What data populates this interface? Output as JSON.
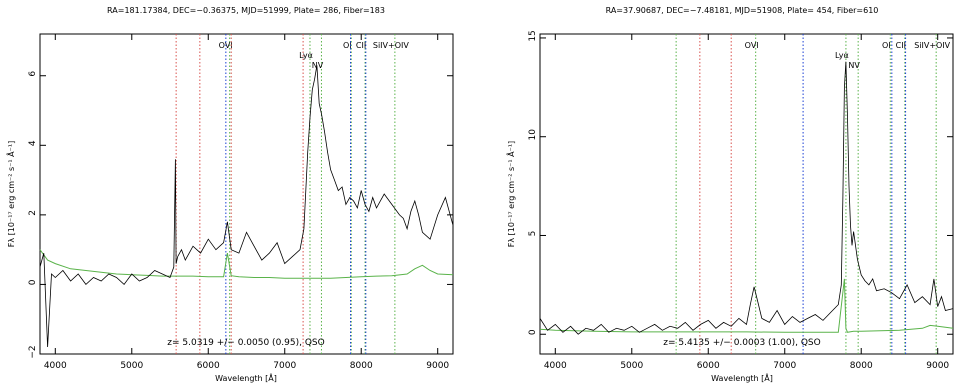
{
  "chart_data": [
    {
      "type": "line",
      "title": "RA=181.17384, DEC=−0.36375, MJD=51999, Plate= 286, Fiber=183",
      "xlabel": "Wavelength [Å]",
      "ylabel": "Fλ [10⁻¹⁷ erg cm⁻² s⁻¹ Å⁻¹]",
      "xlim": [
        3800,
        9200
      ],
      "ylim": [
        -2,
        7.2
      ],
      "xticks": [
        "4000",
        "5000",
        "6000",
        "7000",
        "8000",
        "9000"
      ],
      "yticks": [
        "−2",
        "0",
        "2",
        "4",
        "6"
      ],
      "annotation": "z= 5.0319 +/− 0.0050 (0.95), QSO",
      "lines": [
        {
          "label": "OVI",
          "x": 6280,
          "color": "#5ab34a",
          "show_label": true
        },
        {
          "label": "Lyα",
          "x": 7330,
          "color": "#5ab34a",
          "show_label": true
        },
        {
          "label": "NV",
          "x": 7480,
          "color": "#5ab34a",
          "show_label": true
        },
        {
          "label": "OI",
          "x": 7870,
          "color": "#5ab34a",
          "show_label": true
        },
        {
          "label": "CII",
          "x": 8050,
          "color": "#5ab34a",
          "show_label": true
        },
        {
          "label": "SiIV+OIV",
          "x": 8440,
          "color": "#5ab34a",
          "show_label": true
        },
        {
          "label": "",
          "x": 5580,
          "color": "#d9534f",
          "show_label": false
        },
        {
          "label": "",
          "x": 5890,
          "color": "#d9534f",
          "show_label": false
        },
        {
          "label": "",
          "x": 6300,
          "color": "#d9534f",
          "show_label": false
        },
        {
          "label": "",
          "x": 6230,
          "color": "#1a3fd6",
          "show_label": false
        },
        {
          "label": "",
          "x": 7240,
          "color": "#d9534f",
          "show_label": false
        },
        {
          "label": "",
          "x": 7860,
          "color": "#1a3fd6",
          "show_label": false
        },
        {
          "label": "",
          "x": 8060,
          "color": "#1a3fd6",
          "show_label": false
        }
      ],
      "series": [
        {
          "role": "flux",
          "color": "#000000",
          "x": [
            3800,
            3850,
            3900,
            3950,
            4000,
            4100,
            4200,
            4300,
            4400,
            4500,
            4600,
            4700,
            4800,
            4900,
            5000,
            5100,
            5200,
            5300,
            5400,
            5500,
            5550,
            5570,
            5580,
            5600,
            5650,
            5700,
            5800,
            5900,
            6000,
            6100,
            6200,
            6250,
            6300,
            6400,
            6500,
            6600,
            6700,
            6800,
            6900,
            7000,
            7100,
            7200,
            7250,
            7300,
            7330,
            7360,
            7390,
            7420,
            7450,
            7480,
            7520,
            7560,
            7600,
            7650,
            7700,
            7750,
            7800,
            7850,
            7900,
            7950,
            8000,
            8050,
            8100,
            8150,
            8200,
            8300,
            8400,
            8500,
            8550,
            8600,
            8650,
            8700,
            8750,
            8800,
            8900,
            9000,
            9100,
            9200
          ],
          "y": [
            0.5,
            0.9,
            -1.8,
            0.3,
            0.2,
            0.4,
            0.1,
            0.3,
            0.0,
            0.2,
            0.1,
            0.3,
            0.2,
            0.0,
            0.3,
            0.1,
            0.2,
            0.4,
            0.3,
            0.2,
            0.5,
            3.6,
            0.6,
            0.8,
            1.0,
            0.7,
            1.1,
            0.9,
            1.3,
            1.0,
            1.2,
            1.8,
            1.0,
            0.9,
            1.5,
            1.1,
            0.7,
            0.9,
            1.2,
            0.6,
            0.8,
            1.0,
            1.6,
            3.8,
            4.8,
            5.6,
            5.9,
            6.3,
            5.2,
            4.9,
            4.4,
            3.8,
            3.3,
            3.0,
            2.7,
            2.8,
            2.3,
            2.5,
            2.4,
            2.2,
            2.7,
            2.3,
            2.1,
            2.5,
            2.2,
            2.6,
            2.3,
            2.0,
            1.9,
            1.6,
            2.1,
            2.4,
            2.0,
            1.5,
            1.3,
            2.0,
            2.5,
            1.7
          ]
        },
        {
          "role": "error",
          "color": "#5ab34a",
          "x": [
            3800,
            3900,
            4000,
            4200,
            4400,
            4600,
            4800,
            5000,
            5200,
            5400,
            5600,
            5800,
            6000,
            6200,
            6250,
            6300,
            6400,
            6600,
            6800,
            7000,
            7200,
            7400,
            7600,
            7800,
            8000,
            8200,
            8400,
            8600,
            8700,
            8800,
            8900,
            9000,
            9200
          ],
          "y": [
            1.0,
            0.7,
            0.6,
            0.45,
            0.4,
            0.35,
            0.3,
            0.28,
            0.26,
            0.24,
            0.24,
            0.24,
            0.22,
            0.22,
            0.9,
            0.25,
            0.22,
            0.2,
            0.2,
            0.18,
            0.18,
            0.18,
            0.18,
            0.2,
            0.22,
            0.24,
            0.25,
            0.3,
            0.45,
            0.55,
            0.4,
            0.3,
            0.28
          ]
        }
      ]
    },
    {
      "type": "line",
      "title": "RA=37.90687, DEC=−7.48181, MJD=51908, Plate= 454, Fiber=610",
      "xlabel": "Wavelength [Å]",
      "ylabel": "Fλ [10⁻¹⁷ erg cm⁻² s⁻¹ Å⁻¹]",
      "xlim": [
        3800,
        9200
      ],
      "ylim": [
        -1,
        15.2
      ],
      "xticks": [
        "4000",
        "5000",
        "6000",
        "7000",
        "8000",
        "9000"
      ],
      "yticks": [
        "0",
        "5",
        "10",
        "15"
      ],
      "annotation": "z= 5.4135 +/− 0.0003 (1.00), QSO",
      "lines": [
        {
          "label": "OVI",
          "x": 6620,
          "color": "#5ab34a",
          "show_label": true
        },
        {
          "label": "Lyα",
          "x": 7800,
          "color": "#5ab34a",
          "show_label": true
        },
        {
          "label": "NV",
          "x": 7960,
          "color": "#5ab34a",
          "show_label": true
        },
        {
          "label": "OI",
          "x": 8380,
          "color": "#5ab34a",
          "show_label": true
        },
        {
          "label": "CII",
          "x": 8570,
          "color": "#5ab34a",
          "show_label": true
        },
        {
          "label": "SiIV+OIV",
          "x": 8980,
          "color": "#5ab34a",
          "show_label": true
        },
        {
          "label": "",
          "x": 5580,
          "color": "#5ab34a",
          "show_label": false
        },
        {
          "label": "",
          "x": 5890,
          "color": "#d9534f",
          "show_label": false
        },
        {
          "label": "",
          "x": 6300,
          "color": "#d9534f",
          "show_label": false
        },
        {
          "label": "",
          "x": 7240,
          "color": "#1a3fd6",
          "show_label": false
        },
        {
          "label": "",
          "x": 8400,
          "color": "#1a3fd6",
          "show_label": false
        },
        {
          "label": "",
          "x": 8580,
          "color": "#1a3fd6",
          "show_label": false
        }
      ],
      "series": [
        {
          "role": "flux",
          "color": "#000000",
          "x": [
            3800,
            3900,
            4000,
            4100,
            4200,
            4300,
            4400,
            4500,
            4600,
            4700,
            4800,
            4900,
            5000,
            5100,
            5200,
            5300,
            5400,
            5500,
            5600,
            5700,
            5800,
            5900,
            6000,
            6100,
            6200,
            6300,
            6400,
            6500,
            6550,
            6600,
            6650,
            6700,
            6800,
            6900,
            7000,
            7100,
            7200,
            7300,
            7400,
            7500,
            7600,
            7700,
            7740,
            7760,
            7780,
            7800,
            7820,
            7840,
            7860,
            7880,
            7900,
            7950,
            8000,
            8050,
            8100,
            8150,
            8200,
            8300,
            8400,
            8500,
            8600,
            8700,
            8800,
            8900,
            8950,
            9000,
            9050,
            9100,
            9200
          ],
          "y": [
            0.8,
            0.2,
            0.5,
            0.1,
            0.4,
            0.0,
            0.3,
            0.2,
            0.5,
            0.1,
            0.3,
            0.2,
            0.4,
            0.1,
            0.3,
            0.5,
            0.2,
            0.4,
            0.3,
            0.6,
            0.2,
            0.5,
            0.7,
            0.3,
            0.6,
            0.4,
            0.8,
            0.5,
            1.5,
            2.4,
            1.6,
            0.8,
            0.6,
            1.2,
            0.5,
            0.9,
            0.6,
            0.8,
            1.0,
            0.7,
            1.1,
            1.5,
            2.5,
            7.0,
            12.5,
            13.8,
            11.0,
            7.5,
            5.5,
            4.5,
            5.2,
            3.8,
            3.0,
            2.7,
            2.5,
            2.8,
            2.2,
            2.3,
            2.1,
            1.8,
            2.5,
            1.6,
            1.9,
            1.5,
            2.8,
            1.4,
            1.9,
            1.2,
            1.3
          ]
        },
        {
          "role": "error",
          "color": "#5ab34a",
          "x": [
            3800,
            4000,
            4500,
            5000,
            5500,
            6000,
            6500,
            7000,
            7500,
            7700,
            7780,
            7800,
            7820,
            7900,
            8000,
            8500,
            8800,
            8900,
            9000,
            9100,
            9200
          ],
          "y": [
            0.25,
            0.2,
            0.15,
            0.12,
            0.12,
            0.12,
            0.12,
            0.1,
            0.1,
            0.1,
            2.8,
            0.3,
            0.1,
            0.15,
            0.15,
            0.2,
            0.3,
            0.45,
            0.4,
            0.35,
            0.3
          ]
        }
      ]
    }
  ]
}
